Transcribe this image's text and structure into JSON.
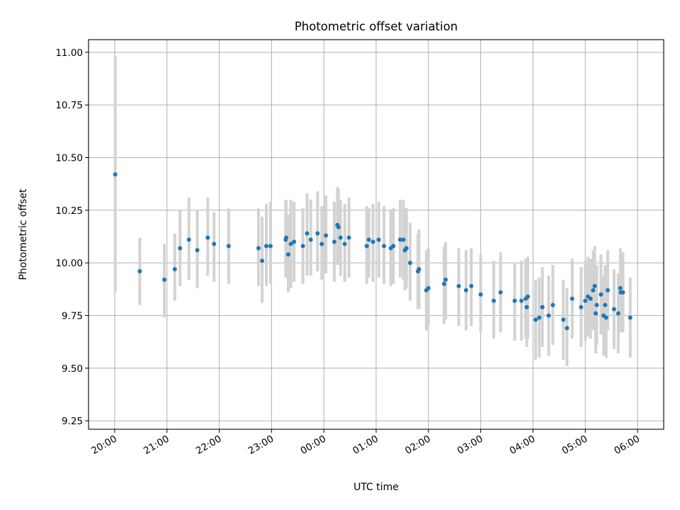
{
  "chart_data": {
    "type": "scatter",
    "title": "Photometric offset variation",
    "xlabel": "UTC time",
    "ylabel": "Photometric offset",
    "x_unit": "hours since 20:00 UTC",
    "xlim": [
      -0.5,
      10.5
    ],
    "ylim": [
      9.21,
      11.06
    ],
    "x_ticks": [
      {
        "value": 0,
        "label": "20:00"
      },
      {
        "value": 1,
        "label": "21:00"
      },
      {
        "value": 2,
        "label": "22:00"
      },
      {
        "value": 3,
        "label": "23:00"
      },
      {
        "value": 4,
        "label": "00:00"
      },
      {
        "value": 5,
        "label": "01:00"
      },
      {
        "value": 6,
        "label": "02:00"
      },
      {
        "value": 7,
        "label": "03:00"
      },
      {
        "value": 8,
        "label": "04:00"
      },
      {
        "value": 9,
        "label": "05:00"
      },
      {
        "value": 10,
        "label": "06:00"
      }
    ],
    "y_ticks": [
      {
        "value": 9.25,
        "label": "9.25"
      },
      {
        "value": 9.5,
        "label": "9.50"
      },
      {
        "value": 9.75,
        "label": "9.75"
      },
      {
        "value": 10.0,
        "label": "10.00"
      },
      {
        "value": 10.25,
        "label": "10.25"
      },
      {
        "value": 10.5,
        "label": "10.50"
      },
      {
        "value": 10.75,
        "label": "10.75"
      },
      {
        "value": 11.0,
        "label": "11.00"
      }
    ],
    "grid": true,
    "colors": {
      "point": "#1f77b4",
      "errorbar": "#d3d3d3"
    },
    "points": [
      [
        0.01,
        10.42,
        9.86,
        10.98
      ],
      [
        0.48,
        9.96,
        9.8,
        10.12
      ],
      [
        0.95,
        9.92,
        9.74,
        10.09
      ],
      [
        1.15,
        9.97,
        9.82,
        10.14
      ],
      [
        1.25,
        10.07,
        9.89,
        10.25
      ],
      [
        1.42,
        10.11,
        9.92,
        10.31
      ],
      [
        1.58,
        10.06,
        9.88,
        10.25
      ],
      [
        1.78,
        10.12,
        9.94,
        10.31
      ],
      [
        1.9,
        10.09,
        9.91,
        10.24
      ],
      [
        2.18,
        10.08,
        9.9,
        10.26
      ],
      [
        2.75,
        10.07,
        9.89,
        10.26
      ],
      [
        2.82,
        10.01,
        9.81,
        10.22
      ],
      [
        2.9,
        10.08,
        9.89,
        10.28
      ],
      [
        2.98,
        10.08,
        9.9,
        10.29
      ],
      [
        3.27,
        10.11,
        9.93,
        10.3
      ],
      [
        3.28,
        10.12,
        9.93,
        10.3
      ],
      [
        3.32,
        10.04,
        9.86,
        10.23
      ],
      [
        3.37,
        10.09,
        9.88,
        10.3
      ],
      [
        3.43,
        10.1,
        9.91,
        10.29
      ],
      [
        3.6,
        10.08,
        9.9,
        10.26
      ],
      [
        3.68,
        10.14,
        9.94,
        10.33
      ],
      [
        3.75,
        10.11,
        9.94,
        10.3
      ],
      [
        3.88,
        10.14,
        9.96,
        10.34
      ],
      [
        3.96,
        10.09,
        9.92,
        10.27
      ],
      [
        4.04,
        10.13,
        9.95,
        10.32
      ],
      [
        4.2,
        10.1,
        9.91,
        10.29
      ],
      [
        4.26,
        10.18,
        9.99,
        10.36
      ],
      [
        4.28,
        10.17,
        9.99,
        10.35
      ],
      [
        4.32,
        10.12,
        9.94,
        10.3
      ],
      [
        4.4,
        10.09,
        9.91,
        10.28
      ],
      [
        4.48,
        10.12,
        9.93,
        10.31
      ],
      [
        4.82,
        10.08,
        9.9,
        10.27
      ],
      [
        4.86,
        10.11,
        9.93,
        10.26
      ],
      [
        4.94,
        10.1,
        9.91,
        10.28
      ],
      [
        5.05,
        10.11,
        9.93,
        10.29
      ],
      [
        5.15,
        10.08,
        9.9,
        10.27
      ],
      [
        5.28,
        10.07,
        9.89,
        10.25
      ],
      [
        5.33,
        10.08,
        9.9,
        10.26
      ],
      [
        5.46,
        10.11,
        9.93,
        10.3
      ],
      [
        5.52,
        10.11,
        9.92,
        10.3
      ],
      [
        5.55,
        10.06,
        9.87,
        10.25
      ],
      [
        5.58,
        10.07,
        9.88,
        10.26
      ],
      [
        5.65,
        10.0,
        9.82,
        10.19
      ],
      [
        5.8,
        9.96,
        9.78,
        10.14
      ],
      [
        5.82,
        9.97,
        9.78,
        10.16
      ],
      [
        5.96,
        9.87,
        9.68,
        10.06
      ],
      [
        6.0,
        9.88,
        9.7,
        10.07
      ],
      [
        6.3,
        9.9,
        9.71,
        10.08
      ],
      [
        6.33,
        9.92,
        9.73,
        10.1
      ],
      [
        6.58,
        9.89,
        9.7,
        10.07
      ],
      [
        6.72,
        9.87,
        9.68,
        10.06
      ],
      [
        6.82,
        9.89,
        9.7,
        10.07
      ],
      [
        7.0,
        9.85,
        9.67,
        10.04
      ],
      [
        7.25,
        9.82,
        9.64,
        10.01
      ],
      [
        7.38,
        9.86,
        9.67,
        10.05
      ],
      [
        7.65,
        9.82,
        9.63,
        10.0
      ],
      [
        7.78,
        9.82,
        9.63,
        10.01
      ],
      [
        7.86,
        9.83,
        9.64,
        10.02
      ],
      [
        7.9,
        9.84,
        9.64,
        10.03
      ],
      [
        7.88,
        9.79,
        9.6,
        9.98
      ],
      [
        8.05,
        9.73,
        9.54,
        9.92
      ],
      [
        8.12,
        9.74,
        9.55,
        9.93
      ],
      [
        8.18,
        9.79,
        9.6,
        9.98
      ],
      [
        8.3,
        9.75,
        9.56,
        9.94
      ],
      [
        8.38,
        9.8,
        9.61,
        9.99
      ],
      [
        8.58,
        9.73,
        9.54,
        9.92
      ],
      [
        8.65,
        9.69,
        9.51,
        9.88
      ],
      [
        8.75,
        9.83,
        9.64,
        10.02
      ],
      [
        8.92,
        9.79,
        9.6,
        9.98
      ],
      [
        9.0,
        9.82,
        9.63,
        10.01
      ],
      [
        9.05,
        9.84,
        9.65,
        10.03
      ],
      [
        9.1,
        9.83,
        9.64,
        10.02
      ],
      [
        9.15,
        9.87,
        9.68,
        10.06
      ],
      [
        9.18,
        9.89,
        9.7,
        10.08
      ],
      [
        9.2,
        9.76,
        9.57,
        9.95
      ],
      [
        9.22,
        9.8,
        9.61,
        9.99
      ],
      [
        9.3,
        9.85,
        9.66,
        10.04
      ],
      [
        9.35,
        9.75,
        9.56,
        9.94
      ],
      [
        9.38,
        9.8,
        9.61,
        9.99
      ],
      [
        9.4,
        9.74,
        9.55,
        9.93
      ],
      [
        9.43,
        9.87,
        9.68,
        10.06
      ],
      [
        9.55,
        9.78,
        9.59,
        9.97
      ],
      [
        9.63,
        9.76,
        9.57,
        9.95
      ],
      [
        9.67,
        9.88,
        9.69,
        10.07
      ],
      [
        9.68,
        9.86,
        9.67,
        10.05
      ],
      [
        9.72,
        9.86,
        9.67,
        10.05
      ],
      [
        9.86,
        9.74,
        9.55,
        9.93
      ]
    ]
  }
}
